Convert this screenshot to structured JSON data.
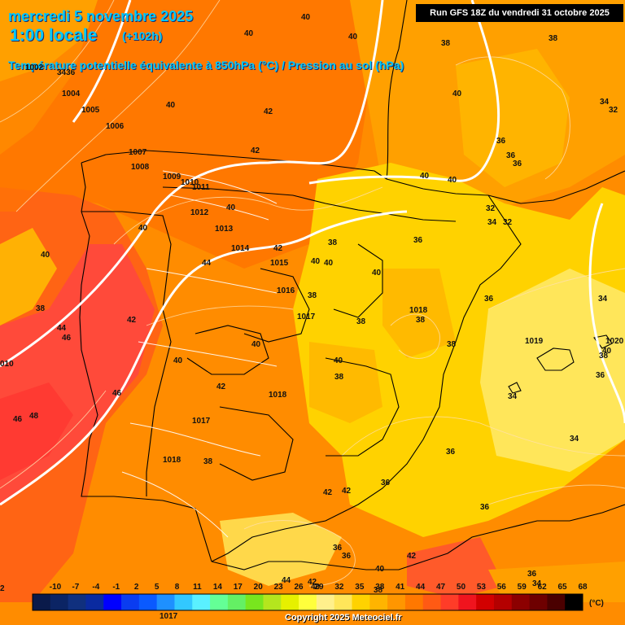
{
  "header": {
    "date": "mercredi 5 novembre 2025",
    "time": "1:00 locale",
    "lead": "(+102h)",
    "variable": "Température potentielle équivalente à 850hPa (°C) / Pression au sol (hPa)",
    "run": "Run GFS 18Z du vendredi 31 octobre 2025"
  },
  "legend": {
    "unit": "(°C)",
    "ticks": [
      "-10",
      "-7",
      "-4",
      "-1",
      "2",
      "5",
      "8",
      "11",
      "14",
      "17",
      "20",
      "23",
      "26",
      "29",
      "32",
      "35",
      "38",
      "41",
      "44",
      "47",
      "50",
      "53",
      "56",
      "59",
      "62",
      "65",
      "68"
    ],
    "colors": [
      "#0a1a4a",
      "#0b2464",
      "#10307e",
      "#0a2aa0",
      "#0000ff",
      "#0a3cf0",
      "#0a5aff",
      "#1e90ff",
      "#32c8ff",
      "#5af0ff",
      "#64ff96",
      "#64f064",
      "#78e61e",
      "#b4e61e",
      "#e6f000",
      "#ffff3c",
      "#fff08c",
      "#ffe65a",
      "#ffd200",
      "#ffb400",
      "#ff9600",
      "#ff7800",
      "#ff5a14",
      "#ff3c28",
      "#f0141e",
      "#d20000",
      "#b40000",
      "#8c0000",
      "#6e0000",
      "#4a0000",
      "#000000"
    ]
  },
  "copyright": "Copyright 2025 Meteociel.fr",
  "isotherm_labels": [
    {
      "t": "40"
    },
    {
      "t": "40"
    },
    {
      "t": "40"
    },
    {
      "t": "38"
    },
    {
      "t": "38"
    },
    {
      "t": "40"
    },
    {
      "t": "42"
    },
    {
      "t": "42"
    },
    {
      "t": "40"
    },
    {
      "t": "34"
    },
    {
      "t": "32"
    },
    {
      "t": "36"
    },
    {
      "t": "36"
    },
    {
      "t": "36"
    },
    {
      "t": "40"
    },
    {
      "t": "40"
    },
    {
      "t": "32"
    },
    {
      "t": "34"
    },
    {
      "t": "32"
    },
    {
      "t": "40"
    },
    {
      "t": "40"
    },
    {
      "t": "38"
    },
    {
      "t": "36"
    },
    {
      "t": "42"
    },
    {
      "t": "44"
    },
    {
      "t": "40"
    },
    {
      "t": "40"
    },
    {
      "t": "40"
    },
    {
      "t": "40"
    },
    {
      "t": "38"
    },
    {
      "t": "38"
    },
    {
      "t": "36"
    },
    {
      "t": "34"
    },
    {
      "t": "38"
    },
    {
      "t": "44"
    },
    {
      "t": "46"
    },
    {
      "t": "42"
    },
    {
      "t": "40"
    },
    {
      "t": "38"
    },
    {
      "t": "38"
    },
    {
      "t": "40"
    },
    {
      "t": "38"
    },
    {
      "t": "36"
    },
    {
      "t": "34"
    },
    {
      "t": "46"
    },
    {
      "t": "46"
    },
    {
      "t": "48"
    },
    {
      "t": "42"
    },
    {
      "t": "40"
    },
    {
      "t": "38"
    },
    {
      "t": "36"
    },
    {
      "t": "34"
    },
    {
      "t": "40"
    },
    {
      "t": "38"
    },
    {
      "t": "36"
    },
    {
      "t": "42"
    },
    {
      "t": "42"
    },
    {
      "t": "36"
    },
    {
      "t": "36"
    },
    {
      "t": "36"
    },
    {
      "t": "42"
    },
    {
      "t": "40"
    },
    {
      "t": "44"
    },
    {
      "t": "40"
    },
    {
      "t": "38"
    },
    {
      "t": "42"
    },
    {
      "t": "34"
    },
    {
      "t": "36"
    },
    {
      "t": "2"
    }
  ],
  "isobar_labels": [
    {
      "t": "1002"
    },
    {
      "t": "3436"
    },
    {
      "t": "1004"
    },
    {
      "t": "1005"
    },
    {
      "t": "1006"
    },
    {
      "t": "1007"
    },
    {
      "t": "1008"
    },
    {
      "t": "1009"
    },
    {
      "t": "1010"
    },
    {
      "t": "1011"
    },
    {
      "t": "1012"
    },
    {
      "t": "1013"
    },
    {
      "t": "1014"
    },
    {
      "t": "1015"
    },
    {
      "t": "1016"
    },
    {
      "t": "1017"
    },
    {
      "t": "1018"
    },
    {
      "t": "1019"
    },
    {
      "t": "1020"
    },
    {
      "t": "1017"
    },
    {
      "t": "1018"
    },
    {
      "t": "1018"
    },
    {
      "t": "1017"
    },
    {
      "t": "010"
    }
  ]
}
